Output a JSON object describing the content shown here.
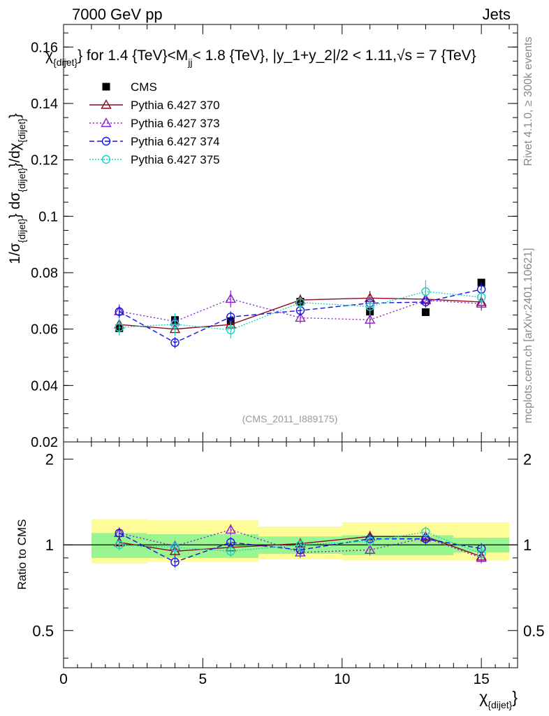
{
  "header": {
    "left": "7000 GeV pp",
    "right": "Jets"
  },
  "side_labels": {
    "rivet": "Rivet 4.1.0, ≥ 300k events",
    "mcplots": "mcplots.cern.ch [arXiv:2401.10621]"
  },
  "colors": {
    "CMS": "#000000",
    "p370": "#8b0a1f",
    "p373": "#8a1fc7",
    "p374": "#1414e0",
    "p375": "#19d4c4",
    "band_inner": "#98f58f",
    "band_outer": "#fdfc97"
  },
  "chart_data": [
    {
      "type": "line",
      "panel": "main",
      "title": "χ_{dijet} for 1.4 {TeV}<M_{jj}< 1.8 {TeV}, |y_1+y_2|/2 < 1.11,√s = 7 {TeV}",
      "title_parts": {
        "chi": "χ",
        "chi_sub": "{dijet}",
        "mid1": "} for 1.4 {TeV}<M",
        "m_sub": "jj",
        "mid2": "< 1.8 {TeV}, |y_1+y_2|/2 < 1.11,",
        "sqrt": "√",
        "end": "s = 7 {TeV}"
      },
      "ylabel": "1/σ_{dijet} dσ_{dijet}/dχ_{dijet}",
      "ylabel_parts": {
        "p1": "1/σ",
        "s1": "{dijet}",
        "p2": "} dσ",
        "s2": "{dijet}",
        "p3": "}/dχ",
        "s3": "{dijet}",
        "p4": "}"
      },
      "xlim": [
        0,
        16.3
      ],
      "ylim": [
        0.02,
        0.168
      ],
      "yticks": [
        0.02,
        0.04,
        0.06,
        0.08,
        0.1,
        0.12,
        0.14,
        0.16
      ],
      "ytick_labels": [
        "0.02",
        "0.04",
        "0.06",
        "0.08",
        "0.1",
        "0.12",
        "0.14",
        "0.16"
      ],
      "watermark": "(CMS_2011_I889175)",
      "x": [
        2,
        4,
        6,
        8.5,
        11,
        13,
        15
      ],
      "x_bins": [
        [
          1,
          3
        ],
        [
          3,
          5
        ],
        [
          5,
          7
        ],
        [
          7,
          10
        ],
        [
          10,
          12
        ],
        [
          12,
          14
        ],
        [
          14,
          16
        ]
      ],
      "series": [
        {
          "key": "CMS",
          "name": "CMS",
          "style": "square",
          "values": [
            0.0603,
            0.0632,
            0.0628,
            0.0697,
            0.0662,
            0.066,
            0.0765
          ],
          "errors": [
            0.001,
            0.001,
            0.001,
            0.001,
            0.001,
            0.001,
            0.001
          ]
        },
        {
          "key": "p370",
          "name": "Pythia 6.427 370",
          "style": "solid-triangle",
          "values": [
            0.0616,
            0.06,
            0.0616,
            0.0703,
            0.071,
            0.0706,
            0.0696
          ],
          "errors": [
            0.0016,
            0.0015,
            0.0016,
            0.002,
            0.0025,
            0.002,
            0.0025
          ]
        },
        {
          "key": "p373",
          "name": "Pythia 6.427 373",
          "style": "dotted-triangle",
          "values": [
            0.0663,
            0.0627,
            0.0707,
            0.064,
            0.0633,
            0.0702,
            0.069
          ],
          "errors": [
            0.0025,
            0.002,
            0.003,
            0.002,
            0.003,
            0.002,
            0.0025
          ]
        },
        {
          "key": "p374",
          "name": "Pythia 6.427 374",
          "style": "dashed-circle",
          "values": [
            0.0662,
            0.0552,
            0.0643,
            0.0666,
            0.0692,
            0.0696,
            0.0741
          ],
          "errors": [
            0.002,
            0.002,
            0.002,
            0.002,
            0.002,
            0.002,
            0.0025
          ]
        },
        {
          "key": "p375",
          "name": "Pythia 6.427 375",
          "style": "dotted-circle",
          "values": [
            0.0606,
            0.0617,
            0.0597,
            0.0694,
            0.068,
            0.0733,
            0.0713
          ],
          "errors": [
            0.003,
            0.004,
            0.003,
            0.002,
            0.003,
            0.004,
            0.003
          ]
        }
      ]
    },
    {
      "type": "line",
      "panel": "ratio",
      "ylabel": "Ratio to CMS",
      "xlabel": "χ_{dijet}",
      "xlabel_parts": {
        "main": "χ",
        "sub": "{dijet}",
        "end": "}"
      },
      "xlim": [
        0,
        16.3
      ],
      "ylim": [
        0.37,
        2.3
      ],
      "yticks": [
        0.5,
        1,
        2
      ],
      "ytick_labels": [
        "0.5",
        "1",
        "2"
      ],
      "xticks": [
        0,
        5,
        10,
        15
      ],
      "xtick_labels": [
        "0",
        "5",
        "10",
        "15"
      ],
      "band_inner": [
        [
          0.9,
          1.1
        ],
        [
          0.9,
          1.09
        ],
        [
          0.9,
          1.09
        ],
        [
          0.93,
          1.07
        ],
        [
          0.92,
          1.08
        ],
        [
          0.92,
          1.08
        ],
        [
          0.94,
          1.06
        ]
      ],
      "band_outer": [
        [
          0.86,
          1.23
        ],
        [
          0.87,
          1.22
        ],
        [
          0.87,
          1.22
        ],
        [
          0.89,
          1.16
        ],
        [
          0.88,
          1.2
        ],
        [
          0.88,
          1.2
        ],
        [
          0.88,
          1.2
        ]
      ],
      "series": [
        {
          "key": "p370",
          "values": [
            1.02,
            0.95,
            0.98,
            1.01,
            1.07,
            1.07,
            0.91
          ]
        },
        {
          "key": "p373",
          "values": [
            1.1,
            0.99,
            1.13,
            0.94,
            0.96,
            1.06,
            0.9
          ]
        },
        {
          "key": "p374",
          "values": [
            1.1,
            0.87,
            1.02,
            0.96,
            1.05,
            1.05,
            0.97
          ]
        },
        {
          "key": "p375",
          "values": [
            1.0,
            0.98,
            0.95,
            1.0,
            1.03,
            1.11,
            0.93
          ]
        }
      ]
    }
  ]
}
